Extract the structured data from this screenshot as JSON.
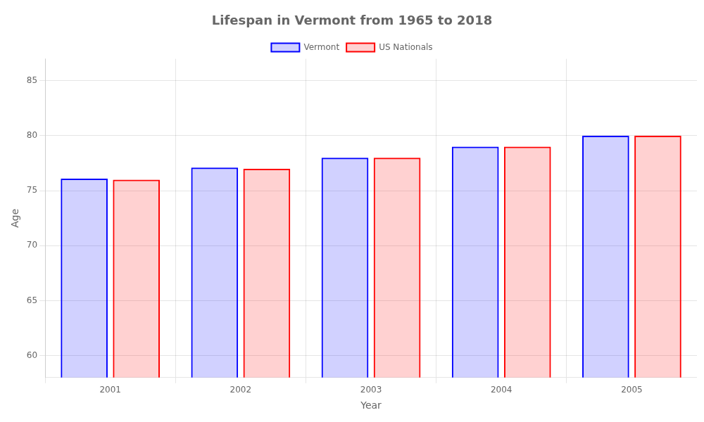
{
  "chart_data": {
    "type": "bar",
    "title": "Lifespan in Vermont from 1965 to 2018",
    "x_label": "Year",
    "y_label": "Age",
    "categories": [
      "2001",
      "2002",
      "2003",
      "2004",
      "2005"
    ],
    "series": [
      {
        "name": "Vermont",
        "color": "#0000ff",
        "values": [
          76.1,
          77.1,
          78.0,
          79.0,
          80.0
        ]
      },
      {
        "name": "US Nationals",
        "color": "#ff0000",
        "values": [
          76.0,
          77.0,
          78.0,
          79.0,
          80.0
        ]
      }
    ],
    "ylim": [
      58,
      87
    ],
    "yticks": [
      60,
      65,
      70,
      75,
      80,
      85
    ],
    "grid": true,
    "legend": "top"
  }
}
